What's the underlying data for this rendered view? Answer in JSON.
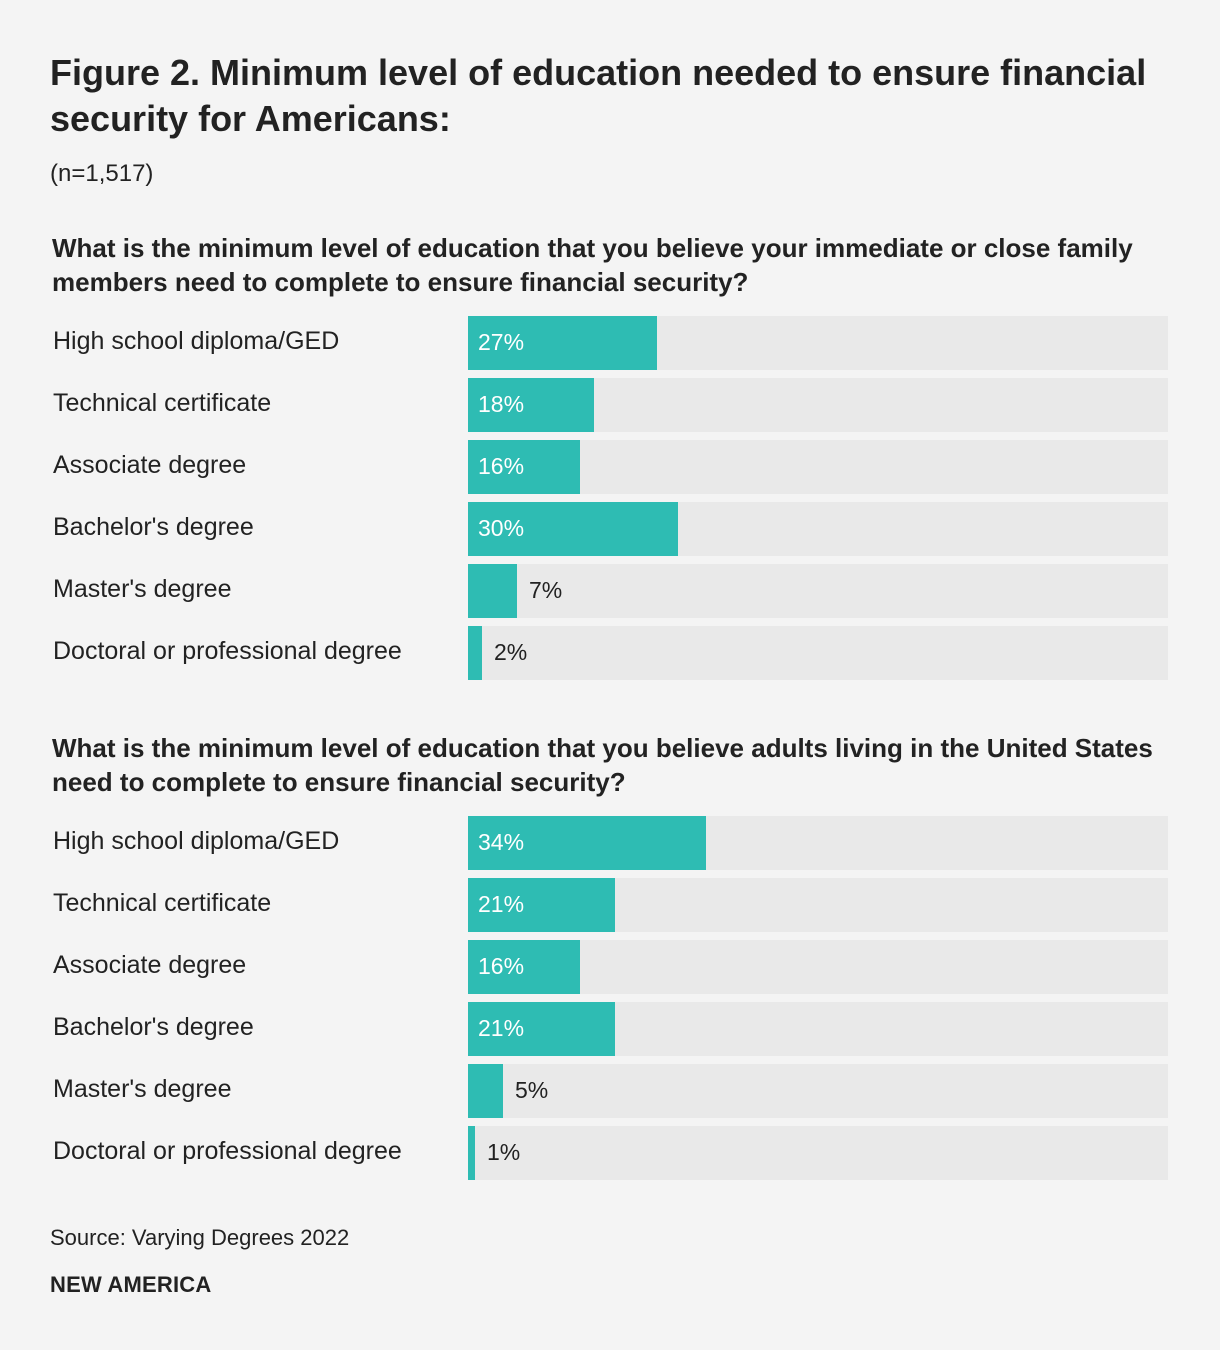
{
  "title": "Figure 2. Minimum level of education needed to ensure financial security for Americans:",
  "subtitle": "(n=1,517)",
  "colors": {
    "bar": "#2ebcb3",
    "track": "#e9e9e9",
    "background": "#f4f4f4"
  },
  "chart_data": [
    {
      "type": "bar",
      "orientation": "horizontal",
      "title": "What is the minimum level of education that you believe your immediate or close family members need to complete to ensure financial security?",
      "categories": [
        "High school diploma/GED",
        "Technical certificate",
        "Associate degree",
        "Bachelor's degree",
        "Master's degree",
        "Doctoral or professional degree"
      ],
      "values": [
        27,
        18,
        16,
        30,
        7,
        2
      ],
      "value_labels": [
        "27%",
        "18%",
        "16%",
        "30%",
        "7%",
        "2%"
      ],
      "xlim": [
        0,
        100
      ],
      "unit": "%"
    },
    {
      "type": "bar",
      "orientation": "horizontal",
      "title": "What is the minimum level of education that you believe adults living in the United States need to complete to ensure financial security?",
      "categories": [
        "High school diploma/GED",
        "Technical certificate",
        "Associate degree",
        "Bachelor's degree",
        "Master's degree",
        "Doctoral or professional degree"
      ],
      "values": [
        34,
        21,
        16,
        21,
        5,
        1
      ],
      "value_labels": [
        "34%",
        "21%",
        "16%",
        "21%",
        "5%",
        "1%"
      ],
      "xlim": [
        0,
        100
      ],
      "unit": "%"
    }
  ],
  "source": "Source: Varying Degrees 2022",
  "brand": "NEW AMERICA"
}
